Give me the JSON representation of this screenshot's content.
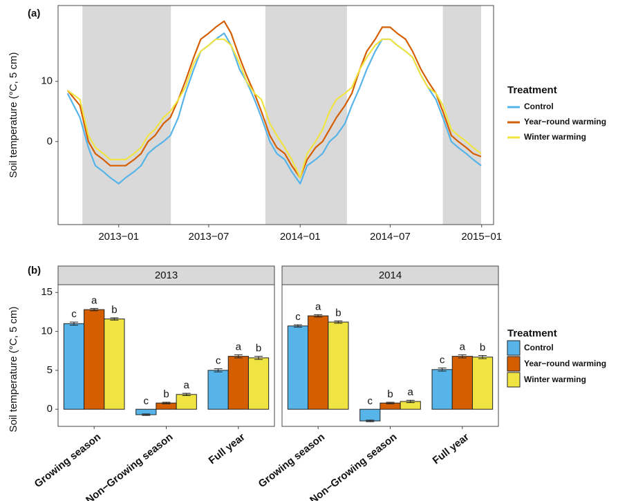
{
  "chart_data": [
    {
      "type": "line",
      "panel_label": "(a)",
      "ylabel": "Soil temperature (°C, 5 cm)",
      "legend_title": "Treatment",
      "xlim": [
        "2012-09-01",
        "2015-01-25"
      ],
      "ylim": [
        -13.8,
        22.6
      ],
      "yticks": [
        0,
        10
      ],
      "xticks": [
        {
          "value": "2013-01-01",
          "label": "2013−01"
        },
        {
          "value": "2013-07-01",
          "label": "2013−07"
        },
        {
          "value": "2014-01-01",
          "label": "2014−01"
        },
        {
          "value": "2014-07-01",
          "label": "2014−07"
        },
        {
          "value": "2015-01-01",
          "label": "2015−01"
        }
      ],
      "shaded": [
        [
          "2012-10-20",
          "2013-04-16"
        ],
        [
          "2013-10-23",
          "2014-04-05"
        ],
        [
          "2014-10-15",
          "2014-12-31"
        ]
      ],
      "x": [
        "2012-09-20",
        "2012-10-15",
        "2012-11-01",
        "2012-11-15",
        "2012-12-01",
        "2012-12-15",
        "2013-01-01",
        "2013-01-15",
        "2013-02-01",
        "2013-02-15",
        "2013-03-01",
        "2013-03-15",
        "2013-04-01",
        "2013-04-15",
        "2013-05-01",
        "2013-05-15",
        "2013-06-01",
        "2013-06-15",
        "2013-07-01",
        "2013-07-15",
        "2013-08-01",
        "2013-08-15",
        "2013-09-01",
        "2013-09-15",
        "2013-10-01",
        "2013-10-15",
        "2013-11-01",
        "2013-11-15",
        "2013-12-01",
        "2013-12-15",
        "2014-01-01",
        "2014-01-15",
        "2014-02-01",
        "2014-02-15",
        "2014-03-01",
        "2014-03-15",
        "2014-04-01",
        "2014-04-15",
        "2014-05-01",
        "2014-05-15",
        "2014-06-01",
        "2014-06-15",
        "2014-07-01",
        "2014-07-15",
        "2014-08-01",
        "2014-08-15",
        "2014-09-01",
        "2014-09-15",
        "2014-10-01",
        "2014-10-15",
        "2014-11-01",
        "2014-11-15",
        "2014-12-01",
        "2014-12-15",
        "2014-12-31"
      ],
      "series": [
        {
          "name": "Control",
          "color": "#56b4e9",
          "values": [
            8,
            4,
            -1,
            -4,
            -5,
            -6,
            -7,
            -6,
            -5,
            -4,
            -2,
            -1,
            0,
            1,
            4,
            8,
            12,
            15,
            16,
            17,
            18,
            16,
            12,
            10,
            7,
            4,
            0,
            -2,
            -3,
            -5,
            -7,
            -4,
            -3,
            -2,
            0,
            1,
            3,
            6,
            9,
            12,
            15,
            17,
            17,
            16,
            15,
            14,
            11,
            9,
            7,
            4,
            0,
            -1,
            -2,
            -3,
            -4
          ]
        },
        {
          "name": "Year−round warming",
          "color": "#d55e00",
          "values": [
            8.5,
            6,
            0,
            -2,
            -3,
            -4,
            -4,
            -4,
            -3,
            -2,
            0,
            1,
            3,
            4,
            7,
            10,
            14,
            17,
            18,
            19,
            20,
            18,
            14,
            11,
            8,
            5,
            1,
            -1,
            -2,
            -4,
            -6,
            -3,
            -1,
            0,
            2,
            4,
            6,
            8,
            12,
            15,
            17,
            19,
            19,
            18,
            17,
            15,
            12,
            10,
            8,
            5,
            1,
            0,
            -1,
            -2,
            -2.5
          ]
        },
        {
          "name": "Winter warming",
          "color": "#f0e442",
          "values": [
            8.5,
            7,
            1,
            -1,
            -2,
            -3,
            -3,
            -3,
            -2,
            -1,
            1,
            2,
            4,
            5,
            7,
            9,
            13,
            15,
            16,
            17,
            17,
            16,
            13,
            10,
            8,
            7,
            3,
            1,
            -1,
            -3,
            -6,
            -2,
            0,
            2,
            5,
            7,
            8,
            9,
            12,
            14,
            16,
            17,
            17,
            16,
            15,
            14,
            11,
            9,
            8,
            6,
            2,
            1,
            0,
            -1,
            -2
          ]
        }
      ]
    },
    {
      "type": "bar",
      "panel_label": "(b)",
      "ylabel": "Soil temperature (°C, 5 cm)",
      "legend_title": "Treatment",
      "ylim": [
        -2.2,
        16
      ],
      "yticks": [
        0,
        5,
        10,
        15
      ],
      "categories": [
        "Growing season",
        "Non−Growing season",
        "Full year"
      ],
      "series": [
        {
          "name": "Control",
          "color": "#56b4e9"
        },
        {
          "name": "Year−round warming",
          "color": "#d55e00"
        },
        {
          "name": "Winter warming",
          "color": "#f0e442"
        }
      ],
      "facets": [
        {
          "title": "2013",
          "groups": [
            {
              "values": [
                11.0,
                12.8,
                11.6
              ],
              "errors": [
                0.2,
                0.15,
                0.15
              ],
              "labels": [
                "c",
                "a",
                "b"
              ]
            },
            {
              "values": [
                -0.7,
                0.8,
                1.9
              ],
              "errors": [
                0.1,
                0.1,
                0.15
              ],
              "labels": [
                "c",
                "b",
                "a"
              ]
            },
            {
              "values": [
                5.0,
                6.8,
                6.6
              ],
              "errors": [
                0.2,
                0.2,
                0.2
              ],
              "labels": [
                "c",
                "a",
                "b"
              ]
            }
          ]
        },
        {
          "title": "2014",
          "groups": [
            {
              "values": [
                10.7,
                12.0,
                11.2
              ],
              "errors": [
                0.15,
                0.15,
                0.15
              ],
              "labels": [
                "c",
                "a",
                "b"
              ]
            },
            {
              "values": [
                -1.5,
                0.8,
                1.0
              ],
              "errors": [
                0.1,
                0.1,
                0.15
              ],
              "labels": [
                "c",
                "b",
                "a"
              ]
            },
            {
              "values": [
                5.1,
                6.8,
                6.7
              ],
              "errors": [
                0.2,
                0.2,
                0.2
              ],
              "labels": [
                "c",
                "a",
                "b"
              ]
            }
          ]
        }
      ]
    }
  ]
}
